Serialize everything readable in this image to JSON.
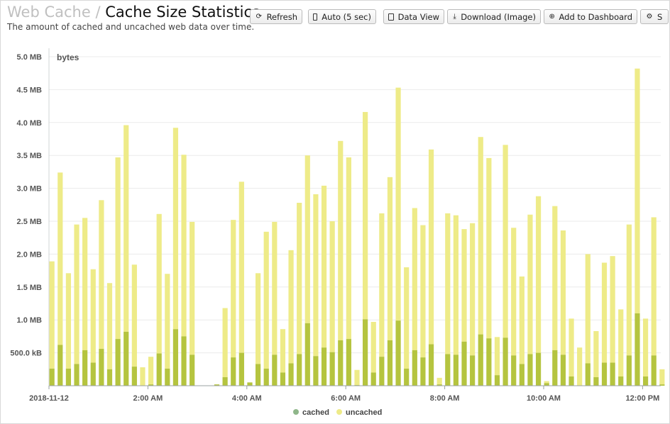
{
  "header": {
    "crumb": "Web Cache",
    "separator": "/",
    "title": "Cache Size Statistics",
    "subtitle": "The amount of cached and uncached web data over time."
  },
  "toolbar": {
    "refresh_label": "Refresh",
    "auto_label": "Auto (5 sec)",
    "dataview_label": "Data View",
    "download_label": "Download (Image)",
    "dashboard_label": "Add to Dashboard",
    "settings_label": "S"
  },
  "colors": {
    "cached": "#b5c43f",
    "uncached": "#eeeb88",
    "grid": "#ebebeb",
    "axis": "#9aa0a0"
  },
  "chart_data": {
    "type": "bar",
    "stacked": true,
    "ylabel": "bytes",
    "ylim": [
      0,
      5000000
    ],
    "y_ticks": [
      500000,
      1000000,
      1500000,
      2000000,
      2500000,
      3000000,
      3500000,
      4000000,
      4500000,
      5000000
    ],
    "y_tick_labels": [
      "500.0 kB",
      "1.0 MB",
      "1.5 MB",
      "2.0 MB",
      "2.5 MB",
      "3.0 MB",
      "3.5 MB",
      "4.0 MB",
      "4.5 MB",
      "5.0 MB"
    ],
    "x_tick_labels": [
      "2018-11-12",
      "2:00 AM",
      "4:00 AM",
      "6:00 AM",
      "8:00 AM",
      "10:00 AM",
      "12:00 PM"
    ],
    "x_start_hours": 0,
    "x_end_hours": 12.5,
    "bar_interval_minutes": 10,
    "legend": {
      "placement": "bottom",
      "entries": [
        "cached",
        "uncached"
      ]
    },
    "series": [
      {
        "name": "cached",
        "values": [
          260000,
          620000,
          260000,
          330000,
          540000,
          350000,
          560000,
          250000,
          710000,
          820000,
          290000,
          0,
          20000,
          490000,
          260000,
          860000,
          750000,
          470000,
          0,
          0,
          20000,
          130000,
          430000,
          500000,
          50000,
          330000,
          260000,
          470000,
          200000,
          340000,
          480000,
          950000,
          450000,
          580000,
          510000,
          690000,
          710000,
          10000,
          1010000,
          200000,
          440000,
          690000,
          990000,
          260000,
          540000,
          430000,
          630000,
          20000,
          480000,
          470000,
          670000,
          460000,
          780000,
          720000,
          160000,
          730000,
          460000,
          330000,
          480000,
          500000,
          40000,
          540000,
          470000,
          140000,
          0,
          340000,
          130000,
          350000,
          350000,
          140000,
          460000,
          1100000,
          140000,
          460000,
          20000
        ]
      },
      {
        "name": "uncached",
        "values": [
          1630000,
          2620000,
          1450000,
          2120000,
          2010000,
          1420000,
          2260000,
          1310000,
          2760000,
          3140000,
          1550000,
          280000,
          420000,
          2120000,
          1440000,
          3060000,
          2760000,
          2020000,
          0,
          0,
          0,
          1050000,
          2090000,
          2600000,
          0,
          1380000,
          2080000,
          2020000,
          660000,
          1720000,
          2300000,
          2550000,
          2460000,
          2460000,
          1990000,
          3030000,
          2760000,
          230000,
          3150000,
          770000,
          2180000,
          2480000,
          3540000,
          1540000,
          2160000,
          2010000,
          2960000,
          100000,
          2140000,
          2120000,
          1710000,
          2010000,
          3000000,
          2740000,
          580000,
          2930000,
          1940000,
          1330000,
          2120000,
          2380000,
          30000,
          2190000,
          1890000,
          880000,
          580000,
          1660000,
          700000,
          1520000,
          1620000,
          1020000,
          1990000,
          3720000,
          880000,
          2100000,
          230000
        ]
      }
    ]
  }
}
